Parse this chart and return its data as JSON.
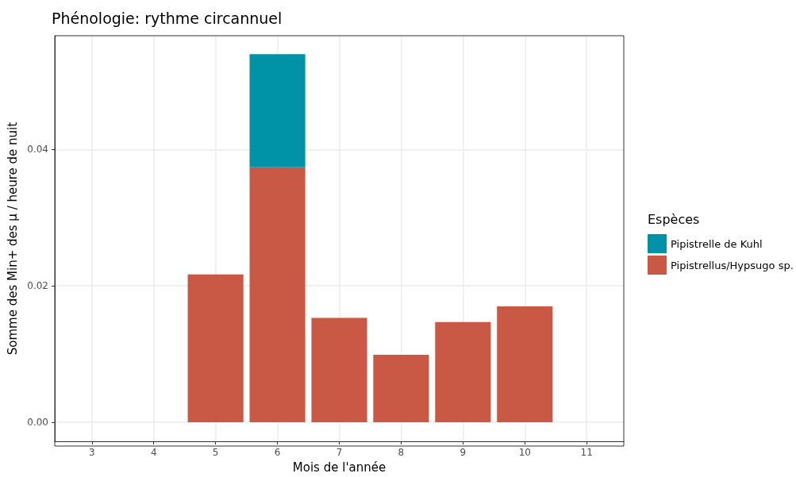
{
  "chart_data": {
    "type": "bar",
    "title": "Phénologie: rythme circannuel",
    "xlabel": "Mois de l'année",
    "ylabel": "Somme des Min+ des µ / heure de nuit",
    "legend_title": "Espèces",
    "x": [
      5,
      6,
      7,
      8,
      9,
      10
    ],
    "stacked": true,
    "series": [
      {
        "name": "Pipistrellus/Hypsugo sp.",
        "color": "#c95845",
        "values": [
          0.0217,
          0.0374,
          0.0153,
          0.0099,
          0.0147,
          0.017
        ]
      },
      {
        "name": "Pipistrelle de Kuhl",
        "color": "#0093a8",
        "values": [
          null,
          0.0166,
          null,
          null,
          null,
          null
        ]
      }
    ],
    "xlim": [
      2.4,
      11.6
    ],
    "xticks": [
      3,
      4,
      5,
      6,
      7,
      8,
      9,
      10,
      11
    ],
    "ylim": [
      -0.0028,
      0.0567
    ],
    "yticks": [
      {
        "value": 0,
        "label": "0.00"
      },
      {
        "value": 0.02,
        "label": "0.02"
      },
      {
        "value": 0.04,
        "label": "0.04"
      }
    ],
    "grid": true,
    "legend": "right"
  }
}
